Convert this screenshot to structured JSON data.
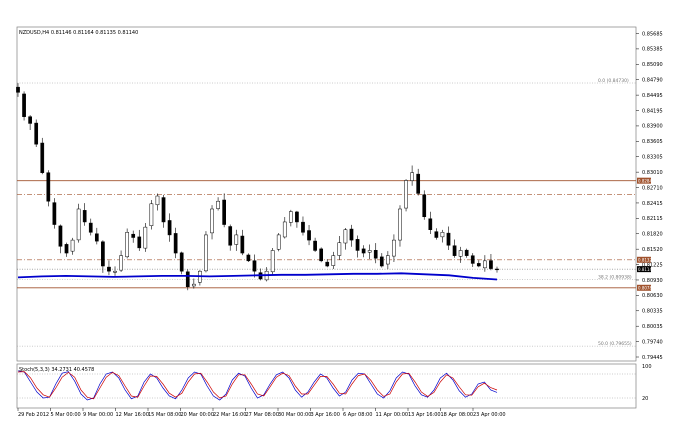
{
  "chart_data": [
    {
      "type": "candlestick",
      "title": "NZDUSD,H4 0.81146 0.81164 0.81135 0.81140",
      "symbol": "NZDUSD,H4",
      "ohlc_header": [
        "0.81146",
        "0.81164",
        "0.81135",
        "0.81140"
      ],
      "y_tick_labels": [
        "0.85685",
        "0.85385",
        "0.85090",
        "0.84790",
        "0.84495",
        "0.84195",
        "0.83900",
        "0.83605",
        "0.83305",
        "0.83010",
        "0.82710",
        "0.82415",
        "0.82115",
        "0.81820",
        "0.81520",
        "0.81225",
        "0.80930",
        "0.80630",
        "0.80335",
        "0.80035",
        "0.79740",
        "0.79445"
      ],
      "ylim": [
        0.7939,
        0.8575
      ],
      "x_tick_labels": [
        "29 Feb 2012",
        "5 Mar 00:00",
        "9 Mar 00:00",
        "12 Mar 16:00",
        "15 Mar 08:00",
        "20 Mar 00:00",
        "22 Mar 16:00",
        "27 Mar 08:00",
        "30 Mar 00:00",
        "3 Apr 16:00",
        "6 Apr 08:00",
        "11 Apr 00:00",
        "13 Apr 16:00",
        "18 Apr 08:00",
        "23 Apr 00:00"
      ],
      "close_path": [
        0.8455,
        0.8408,
        0.8395,
        0.8355,
        0.83,
        0.8245,
        0.82,
        0.8158,
        0.8145,
        0.817,
        0.823,
        0.8205,
        0.8185,
        0.8168,
        0.812,
        0.811,
        0.811,
        0.814,
        0.8185,
        0.8175,
        0.8155,
        0.8195,
        0.824,
        0.8255,
        0.8205,
        0.818,
        0.8145,
        0.811,
        0.808,
        0.8085,
        0.811,
        0.818,
        0.823,
        0.8245,
        0.82,
        0.816,
        0.818,
        0.8145,
        0.813,
        0.811,
        0.8095,
        0.811,
        0.815,
        0.818,
        0.8205,
        0.8225,
        0.8205,
        0.8185,
        0.817,
        0.815,
        0.813,
        0.812,
        0.814,
        0.8165,
        0.819,
        0.817,
        0.815,
        0.8145,
        0.815,
        0.8135,
        0.812,
        0.814,
        0.817,
        0.823,
        0.8285,
        0.83,
        0.826,
        0.8215,
        0.819,
        0.8175,
        0.8185,
        0.816,
        0.814,
        0.815,
        0.814,
        0.8125,
        0.812,
        0.813,
        0.8115,
        0.8114
      ],
      "horizontal_levels": [
        {
          "value": 0.82846,
          "label": "0.82846",
          "color": "#a0522d",
          "style": "solid"
        },
        {
          "value": 0.8258,
          "label": "",
          "color": "#a0522d",
          "style": "dashdot"
        },
        {
          "value": 0.8132,
          "label": "0.81320",
          "color": "#a0522d",
          "style": "dashdot"
        },
        {
          "value": 0.8114,
          "label": "0.81140",
          "color": "#555555",
          "style": "dotted"
        },
        {
          "value": 0.8078,
          "label": "0.80780",
          "color": "#a0522d",
          "style": "solid"
        }
      ],
      "fibonacci": [
        {
          "level": "0.0",
          "price": "0.84730",
          "value": 0.8473
        },
        {
          "level": "38.2",
          "price": "0.80938",
          "value": 0.80938
        },
        {
          "level": "50.0",
          "price": "0.79655",
          "value": 0.79655
        }
      ],
      "moving_average": {
        "color": "#0000cc",
        "values": [
          0.8098,
          0.81,
          0.8101,
          0.81,
          0.8099,
          0.81,
          0.8101,
          0.8101,
          0.81,
          0.8101,
          0.8102,
          0.8103,
          0.8103,
          0.8104,
          0.8105,
          0.8105,
          0.8106,
          0.8104,
          0.8102,
          0.8097,
          0.8094
        ]
      },
      "colors": {
        "bull": "#ffffff",
        "bear": "#000000",
        "wick": "#000000",
        "grid": "#c8c8c8",
        "level": "#a0522d",
        "ma": "#0000cc"
      }
    },
    {
      "type": "line",
      "title": "Stoch(5,3,3) 34.2731 40.4578",
      "indicator": "Stoch(5,3,3)",
      "values_header": [
        "34.2731",
        "40.4578"
      ],
      "y_tick_labels": [
        "100",
        "20"
      ],
      "levels": [
        80,
        20
      ],
      "ylim": [
        0,
        100
      ],
      "series": [
        {
          "color": "#0000cc",
          "values": [
            88,
            85,
            60,
            35,
            20,
            22,
            55,
            82,
            86,
            62,
            30,
            15,
            20,
            55,
            80,
            85,
            70,
            40,
            18,
            25,
            60,
            80,
            70,
            45,
            25,
            18,
            40,
            70,
            85,
            80,
            50,
            25,
            15,
            30,
            65,
            82,
            75,
            45,
            20,
            28,
            55,
            78,
            85,
            70,
            40,
            22,
            35,
            60,
            80,
            70,
            45,
            25,
            35,
            65,
            82,
            80,
            55,
            30,
            20,
            38,
            70,
            85,
            80,
            50,
            28,
            22,
            40,
            70,
            82,
            65,
            38,
            22,
            30,
            55,
            60,
            40,
            34
          ]
        },
        {
          "color": "#cc0000",
          "values": [
            85,
            86,
            70,
            45,
            28,
            22,
            45,
            72,
            84,
            72,
            40,
            22,
            18,
            45,
            72,
            84,
            76,
            50,
            25,
            22,
            50,
            75,
            74,
            55,
            32,
            22,
            32,
            60,
            80,
            82,
            60,
            35,
            20,
            25,
            55,
            78,
            78,
            55,
            30,
            25,
            48,
            72,
            82,
            76,
            50,
            30,
            30,
            52,
            74,
            74,
            55,
            32,
            30,
            55,
            76,
            80,
            64,
            40,
            24,
            30,
            60,
            80,
            82,
            60,
            35,
            24,
            34,
            60,
            78,
            70,
            48,
            28,
            27,
            48,
            57,
            46,
            40
          ]
        }
      ]
    }
  ]
}
